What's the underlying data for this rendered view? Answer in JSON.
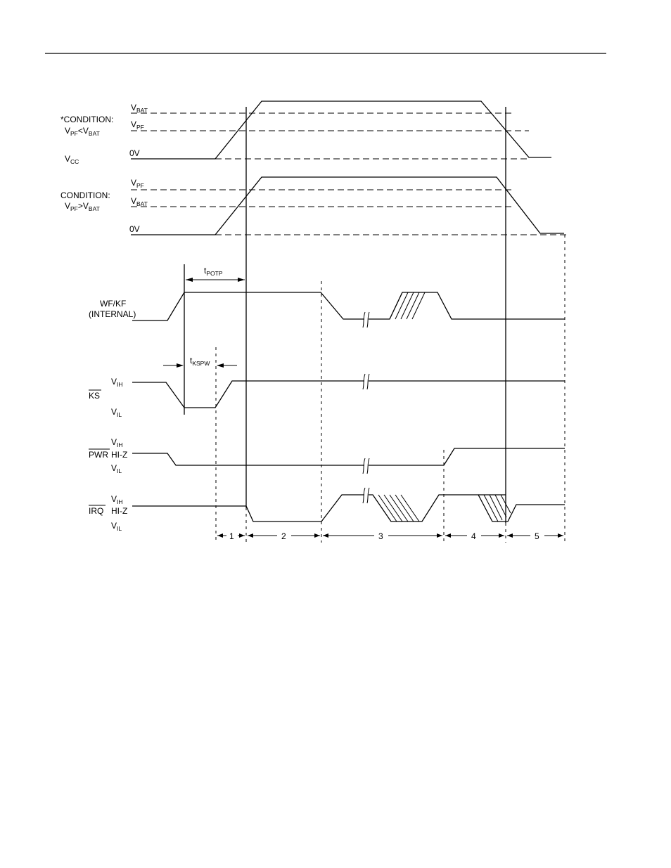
{
  "condition_1": {
    "title": "*CONDITION:",
    "expr_a_main": "V",
    "expr_a_sub": "PF",
    "expr_op": "<",
    "expr_b_main": "V",
    "expr_b_sub": "BAT"
  },
  "condition_2": {
    "title": "CONDITION:",
    "expr_a_main": "V",
    "expr_a_sub": "PF",
    "expr_op": ">",
    "expr_b_main": "V",
    "expr_b_sub": "BAT"
  },
  "vcc": {
    "main": "V",
    "sub": "CC"
  },
  "levels": {
    "vbat_main": "V",
    "vbat_sub": "BAT",
    "vpf_main": "V",
    "vpf_sub": "PF",
    "zero": "0V",
    "vih_main": "V",
    "vih_sub": "IH",
    "vil_main": "V",
    "vil_sub": "IL",
    "hiz": "HI-Z"
  },
  "timing": {
    "tpotp_main": "t",
    "tpotp_sub": "POTP",
    "tkspw_main": "t",
    "tkspw_sub": "KSPW"
  },
  "signals": {
    "wfkf_line1": "WF/KF",
    "wfkf_line2": "(INTERNAL)",
    "ks": "KS",
    "pwr": "PWR",
    "irq": "IRQ"
  },
  "intervals": [
    "1",
    "2",
    "3",
    "4",
    "5"
  ]
}
